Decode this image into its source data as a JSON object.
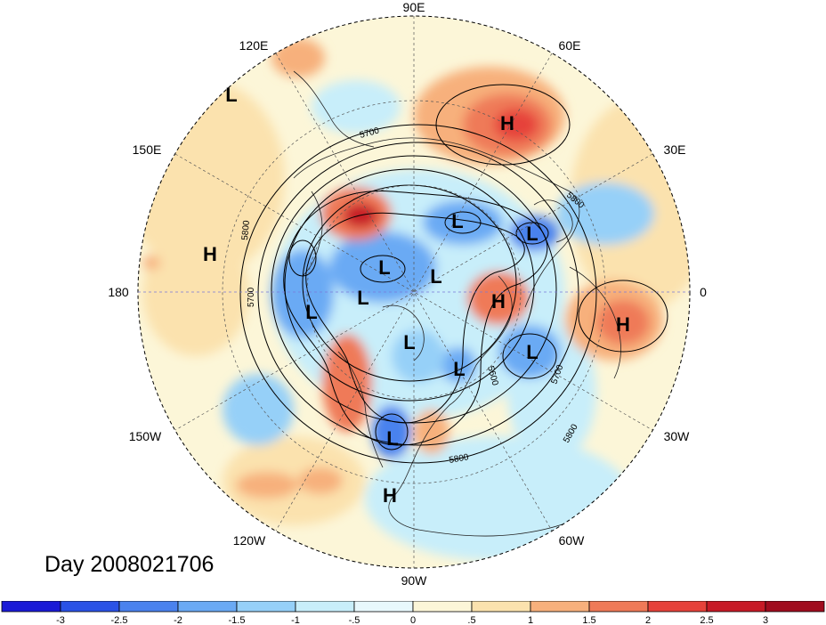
{
  "title": "Day 2008021706",
  "longitude_labels": [
    "90E",
    "60E",
    "30E",
    "0",
    "30W",
    "60W",
    "90W",
    "120W",
    "150W",
    "180",
    "150E",
    "120E"
  ],
  "contour_labels": [
    "5700",
    "5800",
    "5700",
    "5800",
    "5800",
    "5600",
    "5700",
    "5800"
  ],
  "centers": [
    "L",
    "H",
    "H",
    "L",
    "L",
    "L",
    "L",
    "L",
    "H",
    "L",
    "L",
    "L",
    "H",
    "L",
    "H",
    "L"
  ],
  "colorbar": {
    "labels": [
      "-3",
      "-2.5",
      "-2",
      "-1.5",
      "-1",
      "-.5",
      "0",
      ".5",
      "1",
      "1.5",
      "2",
      "2.5",
      "3"
    ],
    "colors": [
      "#1a1ad6",
      "#2a52e6",
      "#4a82ee",
      "#6aaaf4",
      "#96d0f8",
      "#c8eefa",
      "#e8f8fc",
      "#fcf6d8",
      "#fbe2ae",
      "#f7b07c",
      "#ef7a58",
      "#e6423a",
      "#c71a26",
      "#a00c1e"
    ]
  }
}
